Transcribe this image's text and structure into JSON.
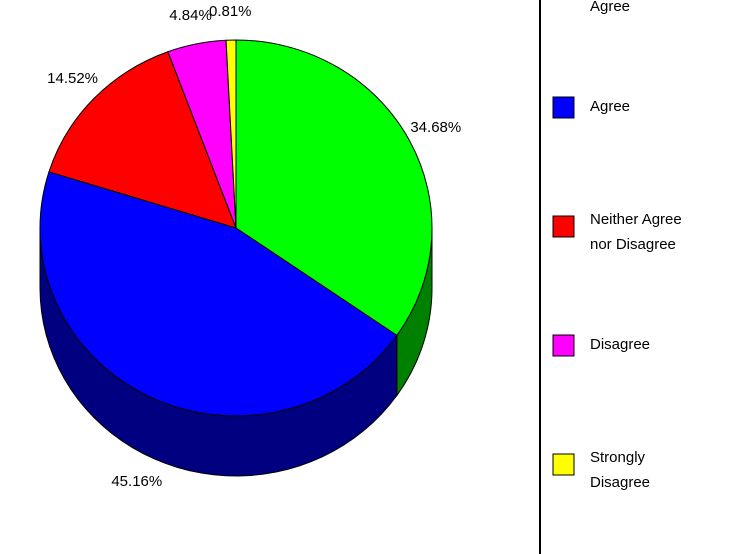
{
  "chart_data": {
    "type": "pie",
    "categories": [
      "Strongly Agree",
      "Agree",
      "Neither Agree nor Disagree",
      "Disagree",
      "Strongly Disagree"
    ],
    "values": [
      34.68,
      45.16,
      14.52,
      4.84,
      0.81
    ],
    "value_labels": [
      "34.68%",
      "45.16%",
      "14.52%",
      "4.84%",
      "0.81%"
    ],
    "colors": [
      "#00ff00",
      "#0000ff",
      "#ff0000",
      "#ff00ff",
      "#ffff00"
    ]
  }
}
